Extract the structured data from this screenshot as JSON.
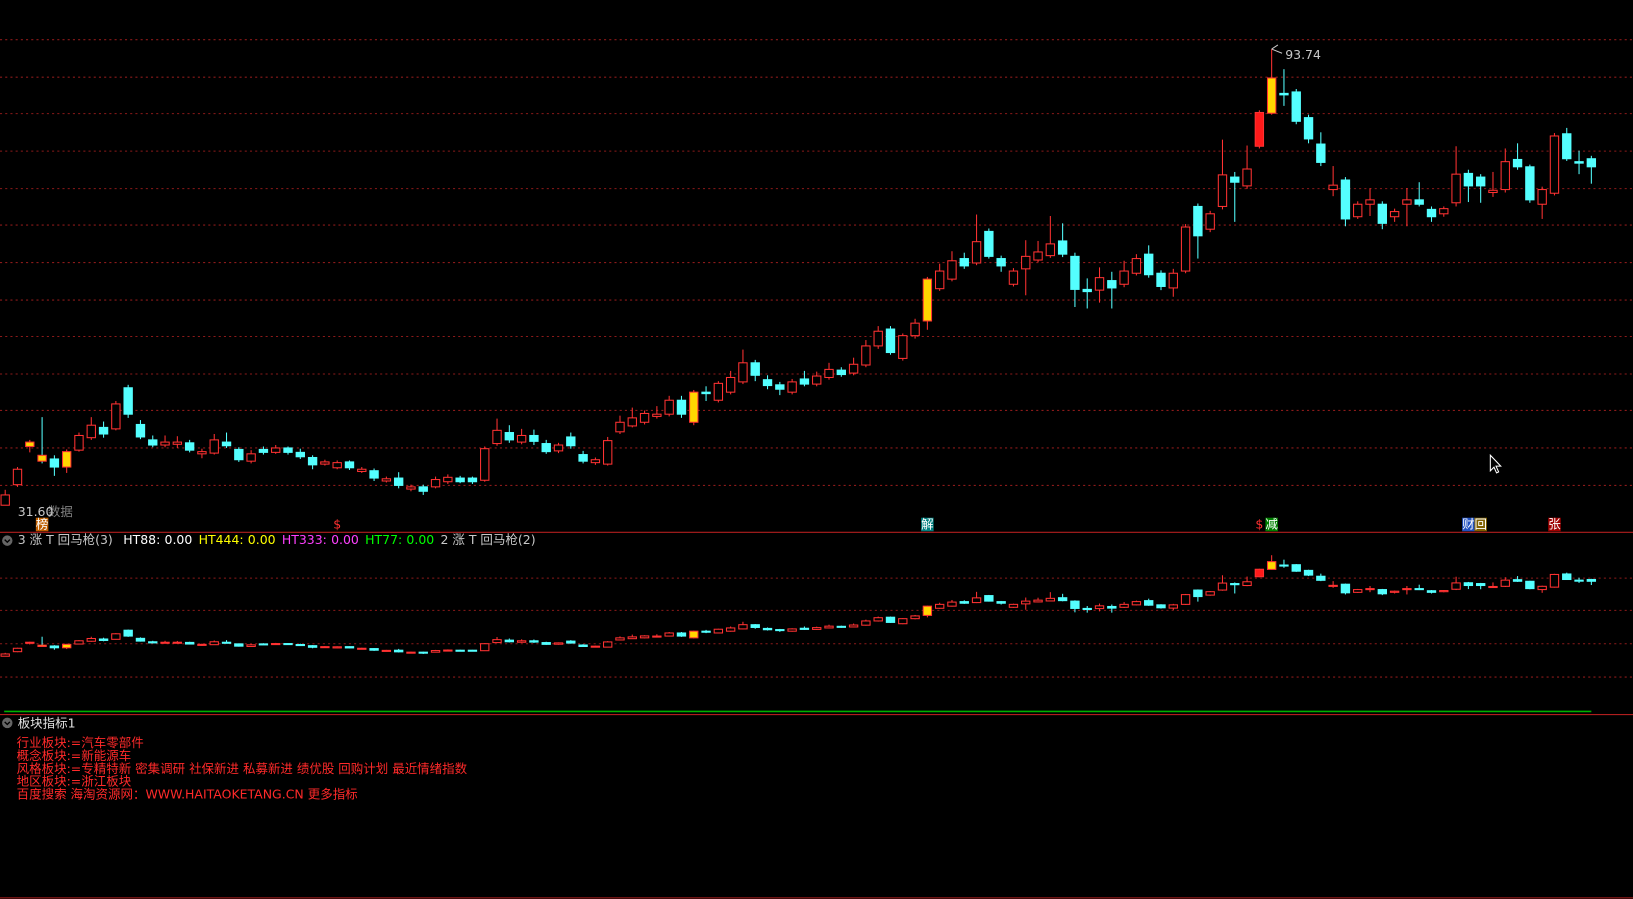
{
  "chart_data": {
    "type": "candlestick",
    "ylim": [
      31.6,
      93.74
    ],
    "max_label": "93.74",
    "min_label": "31.60",
    "min_note": "数据",
    "up_color": "#ff3232",
    "down_color": "#54ffff",
    "highlights": [
      {
        "index": 2,
        "color": "#ffd700"
      },
      {
        "index": 3,
        "color": "#ffd700"
      },
      {
        "index": 5,
        "color": "#ffd700"
      },
      {
        "index": 56,
        "color": "#ffd700"
      },
      {
        "index": 75,
        "color": "#ffd700"
      },
      {
        "index": 103,
        "color": "#ffd700"
      },
      {
        "index": 102,
        "color": "#ff1a1a"
      }
    ],
    "candles": [
      [
        31.6,
        33.7,
        31.6,
        33.0
      ],
      [
        34.4,
        36.8,
        34.1,
        36.5
      ],
      [
        39.6,
        40.5,
        38.8,
        40.2
      ],
      [
        38.4,
        43.6,
        37.3,
        37.6
      ],
      [
        37.9,
        38.4,
        35.6,
        36.8
      ],
      [
        36.8,
        39.2,
        36.0,
        38.9
      ],
      [
        39.1,
        41.5,
        38.9,
        41.1
      ],
      [
        40.8,
        43.6,
        40.5,
        42.5
      ],
      [
        42.2,
        43.0,
        40.8,
        41.3
      ],
      [
        42.0,
        45.8,
        41.8,
        45.4
      ],
      [
        47.6,
        48.0,
        43.5,
        44.0
      ],
      [
        42.6,
        43.2,
        40.6,
        40.9
      ],
      [
        40.5,
        41.1,
        39.5,
        39.8
      ],
      [
        39.8,
        41.1,
        39.5,
        40.2
      ],
      [
        39.9,
        41.0,
        39.4,
        40.2
      ],
      [
        40.1,
        40.5,
        38.8,
        39.1
      ],
      [
        38.6,
        39.3,
        38.0,
        38.9
      ],
      [
        38.7,
        41.3,
        38.5,
        40.5
      ],
      [
        40.2,
        41.5,
        39.4,
        39.7
      ],
      [
        39.2,
        39.5,
        37.5,
        37.8
      ],
      [
        37.6,
        39.1,
        37.3,
        38.6
      ],
      [
        39.2,
        39.6,
        38.5,
        38.8
      ],
      [
        38.8,
        39.8,
        38.6,
        39.4
      ],
      [
        39.4,
        39.6,
        38.5,
        38.8
      ],
      [
        38.8,
        39.3,
        37.9,
        38.2
      ],
      [
        38.1,
        38.4,
        36.5,
        37.1
      ],
      [
        37.2,
        37.8,
        37.0,
        37.5
      ],
      [
        36.7,
        37.7,
        36.5,
        37.4
      ],
      [
        37.5,
        37.7,
        36.4,
        36.7
      ],
      [
        36.2,
        36.8,
        36.0,
        36.5
      ],
      [
        36.3,
        36.6,
        34.9,
        35.3
      ],
      [
        34.9,
        35.5,
        34.7,
        35.2
      ],
      [
        35.3,
        36.1,
        33.9,
        34.3
      ],
      [
        33.8,
        34.4,
        33.5,
        34.1
      ],
      [
        34.1,
        34.4,
        33.0,
        33.5
      ],
      [
        34.1,
        35.5,
        33.9,
        35.1
      ],
      [
        34.8,
        35.8,
        34.5,
        35.4
      ],
      [
        35.3,
        35.6,
        34.6,
        34.8
      ],
      [
        35.3,
        35.5,
        34.5,
        34.8
      ],
      [
        35.0,
        39.6,
        34.8,
        39.3
      ],
      [
        40.0,
        43.4,
        39.7,
        41.8
      ],
      [
        41.5,
        42.5,
        40.1,
        40.5
      ],
      [
        40.2,
        42.0,
        39.9,
        41.1
      ],
      [
        41.1,
        41.9,
        39.8,
        40.3
      ],
      [
        40.0,
        40.5,
        38.6,
        38.9
      ],
      [
        39.0,
        40.1,
        38.7,
        39.8
      ],
      [
        40.9,
        41.5,
        39.3,
        39.7
      ],
      [
        38.5,
        39.0,
        37.3,
        37.6
      ],
      [
        37.4,
        38.1,
        37.1,
        37.8
      ],
      [
        37.2,
        40.9,
        37.0,
        40.4
      ],
      [
        41.6,
        43.8,
        41.3,
        42.9
      ],
      [
        42.4,
        44.9,
        42.2,
        43.5
      ],
      [
        42.9,
        44.5,
        42.6,
        44.1
      ],
      [
        43.7,
        45.1,
        43.4,
        44.0
      ],
      [
        44.0,
        46.5,
        43.7,
        45.9
      ],
      [
        45.9,
        46.5,
        43.5,
        44.0
      ],
      [
        42.9,
        47.3,
        42.5,
        47.0
      ],
      [
        47.0,
        47.8,
        45.8,
        46.8
      ],
      [
        45.9,
        48.5,
        45.6,
        48.2
      ],
      [
        47.0,
        49.9,
        46.7,
        49.0
      ],
      [
        48.4,
        52.8,
        48.1,
        51.0
      ],
      [
        51.0,
        51.4,
        48.5,
        49.3
      ],
      [
        48.7,
        49.3,
        47.4,
        47.9
      ],
      [
        48.0,
        48.4,
        46.6,
        47.4
      ],
      [
        47.0,
        48.8,
        46.7,
        48.4
      ],
      [
        48.8,
        49.9,
        47.8,
        48.1
      ],
      [
        48.1,
        49.8,
        47.8,
        49.2
      ],
      [
        49.0,
        51.0,
        48.7,
        50.1
      ],
      [
        50.0,
        50.4,
        49.1,
        49.4
      ],
      [
        49.6,
        51.7,
        49.3,
        50.8
      ],
      [
        50.7,
        54.1,
        50.4,
        53.3
      ],
      [
        53.3,
        56.0,
        52.9,
        55.3
      ],
      [
        55.6,
        56.0,
        52.1,
        52.4
      ],
      [
        51.6,
        55.0,
        51.3,
        54.7
      ],
      [
        54.7,
        57.0,
        54.3,
        56.4
      ],
      [
        56.7,
        62.7,
        55.5,
        62.4
      ],
      [
        61.1,
        64.5,
        60.8,
        63.5
      ],
      [
        62.4,
        66.2,
        62.1,
        64.9
      ],
      [
        65.2,
        66.0,
        63.8,
        64.2
      ],
      [
        64.6,
        71.2,
        64.3,
        67.5
      ],
      [
        68.9,
        69.3,
        65.2,
        65.5
      ],
      [
        65.2,
        65.6,
        63.4,
        64.2
      ],
      [
        61.7,
        63.9,
        61.4,
        63.5
      ],
      [
        63.8,
        67.7,
        60.2,
        65.5
      ],
      [
        65.0,
        67.6,
        64.7,
        66.1
      ],
      [
        65.6,
        71.0,
        65.3,
        67.2
      ],
      [
        67.6,
        70.0,
        65.4,
        65.8
      ],
      [
        65.5,
        66.0,
        58.6,
        61.0
      ],
      [
        61.0,
        62.5,
        58.4,
        60.7
      ],
      [
        60.9,
        64.0,
        59.2,
        62.6
      ],
      [
        62.2,
        63.4,
        58.4,
        61.2
      ],
      [
        61.7,
        64.9,
        61.3,
        63.5
      ],
      [
        63.2,
        65.8,
        62.9,
        65.2
      ],
      [
        65.8,
        67.0,
        62.6,
        63.0
      ],
      [
        63.2,
        63.6,
        60.9,
        61.4
      ],
      [
        61.2,
        63.8,
        60.0,
        63.2
      ],
      [
        63.5,
        69.9,
        63.2,
        69.5
      ],
      [
        72.3,
        72.7,
        65.2,
        68.3
      ],
      [
        69.2,
        71.7,
        68.8,
        71.3
      ],
      [
        72.3,
        81.4,
        71.9,
        76.6
      ],
      [
        76.3,
        77.0,
        70.2,
        75.6
      ],
      [
        75.1,
        80.6,
        74.7,
        77.4
      ],
      [
        80.5,
        85.4,
        80.2,
        85.1
      ],
      [
        85.0,
        93.74,
        84.8,
        89.8
      ],
      [
        87.7,
        91.0,
        86.0,
        87.5
      ],
      [
        87.9,
        88.3,
        83.5,
        83.9
      ],
      [
        84.4,
        84.8,
        80.9,
        81.5
      ],
      [
        80.8,
        82.4,
        77.8,
        78.3
      ],
      [
        74.6,
        77.8,
        73.7,
        75.2
      ],
      [
        75.9,
        76.3,
        69.6,
        70.6
      ],
      [
        70.9,
        73.0,
        70.6,
        72.6
      ],
      [
        72.6,
        74.8,
        71.0,
        73.2
      ],
      [
        72.6,
        73.0,
        69.2,
        70.0
      ],
      [
        70.9,
        72.0,
        70.2,
        71.6
      ],
      [
        72.6,
        74.8,
        69.6,
        73.2
      ],
      [
        73.2,
        75.6,
        72.3,
        72.6
      ],
      [
        71.9,
        72.3,
        70.2,
        70.9
      ],
      [
        71.3,
        72.3,
        70.9,
        72.0
      ],
      [
        72.8,
        80.5,
        72.3,
        76.7
      ],
      [
        76.8,
        77.3,
        72.9,
        75.1
      ],
      [
        76.3,
        76.7,
        72.8,
        75.1
      ],
      [
        74.2,
        77.0,
        73.6,
        74.5
      ],
      [
        74.6,
        80.2,
        74.2,
        78.4
      ],
      [
        78.7,
        80.9,
        77.3,
        77.7
      ],
      [
        77.7,
        78.0,
        72.8,
        73.2
      ],
      [
        72.6,
        75.0,
        70.6,
        74.6
      ],
      [
        74.1,
        82.3,
        73.8,
        81.9
      ],
      [
        82.2,
        83.0,
        78.5,
        78.8
      ],
      [
        78.4,
        79.9,
        76.7,
        78.2
      ],
      [
        78.8,
        79.2,
        75.4,
        77.7
      ]
    ],
    "events": [
      {
        "label": "榜",
        "index": 3,
        "color": "#ffffff",
        "background": "#c06000"
      },
      {
        "label": "$",
        "index": 27,
        "color": "#ff3030"
      },
      {
        "label": "解",
        "index": 75,
        "color": "#ffffff",
        "background": "#008080"
      },
      {
        "label": "$",
        "index": 102,
        "color": "#ff3030"
      },
      {
        "label": "减",
        "index": 103,
        "color": "#ffffff",
        "background": "#008000"
      },
      {
        "label": "财",
        "index": 119,
        "color": "#ffffff",
        "background": "#2050c0"
      },
      {
        "label": "回",
        "index": 120,
        "color": "#ffffff",
        "background": "#806000"
      },
      {
        "label": "张",
        "index": 126,
        "color": "#ffffff",
        "background": "#a00000"
      }
    ],
    "indicator": {
      "items": [
        {
          "name": "3 涨 T 回马枪(3)",
          "color": "#c8c8c8"
        },
        {
          "name": "HT88:",
          "value": 0,
          "value_label": "0.00",
          "color": "#ffffff"
        },
        {
          "name": "HT444:",
          "value": 0,
          "value_label": "0.00",
          "color": "#ffff00"
        },
        {
          "name": "HT333:",
          "value": 0,
          "value_label": "0.00",
          "color": "#ff40ff"
        },
        {
          "name": "HT77:",
          "value": 0,
          "value_label": "0.00",
          "color": "#00ff00"
        },
        {
          "name": "2 涨 T 回马枪(2)",
          "color": "#c8c8c8"
        }
      ]
    }
  },
  "sector_panel": {
    "title": "板块指标1",
    "lines": [
      "行业板块:=汽车零部件",
      "概念板块:=新能源车",
      "风格板块:=专精特新 密集调研 社保新进 私募新进 绩优股 回购计划 最近情绪指数",
      "地区板块:=浙江板块",
      "百度搜索 海淘资源网：WWW.HAITAOKETANG.CN 更多指标"
    ]
  }
}
